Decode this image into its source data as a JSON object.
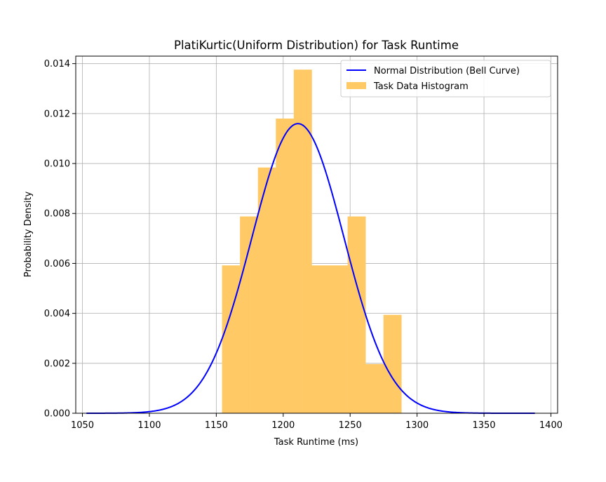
{
  "chart_data": {
    "type": "bar",
    "title": "PlatiKurtic(Uniform Distribution) for Task Runtime",
    "xlabel": "Task Runtime (ms)",
    "ylabel": "Probability Density",
    "xlim": [
      1045,
      1405
    ],
    "ylim": [
      0,
      0.0143
    ],
    "xticks": [
      1050,
      1100,
      1150,
      1200,
      1250,
      1300,
      1350,
      1400
    ],
    "yticks": [
      0.0,
      0.002,
      0.004,
      0.006,
      0.008,
      0.01,
      0.012,
      0.014
    ],
    "ytick_labels": [
      "0.000",
      "0.002",
      "0.004",
      "0.006",
      "0.008",
      "0.010",
      "0.012",
      "0.014"
    ],
    "grid": true,
    "legend_position": "top-right",
    "histogram": {
      "name": "Task Data Histogram",
      "color": "#FFC966",
      "bin_edges": [
        1154.3,
        1161.0,
        1167.7,
        1174.4,
        1181.1,
        1187.8,
        1194.5,
        1201.2,
        1207.9,
        1214.6,
        1221.3,
        1228.0,
        1234.7,
        1241.4,
        1248.1,
        1254.8,
        1261.5,
        1268.2,
        1274.9,
        1281.6,
        1288.3
      ],
      "densities": [
        0.00592,
        0.00592,
        0.00788,
        0.00788,
        0.00984,
        0.00984,
        0.0118,
        0.0118,
        0.01376,
        0.01376,
        0.00592,
        0.00592,
        0.00592,
        0.00592,
        0.00788,
        0.00788,
        0.00197,
        0.00197,
        0.00394,
        0.00394
      ]
    },
    "curve": {
      "name": "Normal Distribution (Bell Curve)",
      "color": "#0000FF",
      "type": "normal_pdf",
      "mean": 1211,
      "std": 34.4,
      "x_range": [
        1053,
        1388
      ]
    }
  }
}
